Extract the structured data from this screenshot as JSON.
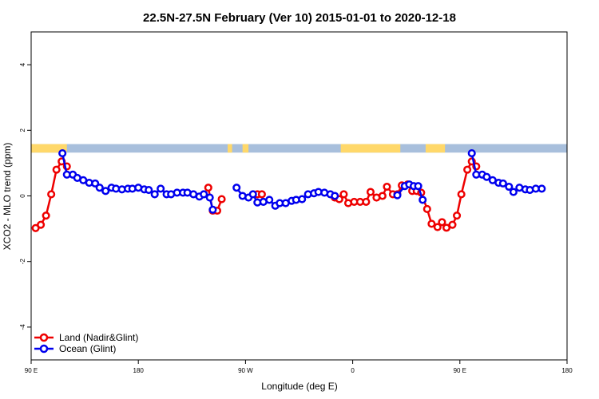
{
  "chart_data": {
    "type": "line",
    "title": "22.5N-27.5N February (Ver 10)   2015-01-01 to 2020-12-18",
    "xlabel": "Longitude (deg E)",
    "ylabel": "XCO2 - MLO trend (ppm)",
    "xlim": [
      90,
      450
    ],
    "ylim": [
      -5,
      5
    ],
    "x_ticks": [
      {
        "value": 90,
        "label": "90 E"
      },
      {
        "value": 162,
        "label": "180"
      },
      {
        "value": 234,
        "label": "90 W"
      },
      {
        "value": 306,
        "label": "0"
      },
      {
        "value": 378,
        "label": "90 E"
      },
      {
        "value": 450,
        "label": "180"
      }
    ],
    "y_ticks": [
      -4,
      -2,
      0,
      2,
      4
    ],
    "grid": false,
    "legend_position": "bottom-left",
    "land_band": {
      "y_range": [
        1.32,
        1.58
      ],
      "ocean_color": "#a8bfdc",
      "land_color": "#ffd86a",
      "land_x_ranges": [
        [
          90,
          114
        ],
        [
          222,
          225
        ],
        [
          232,
          236
        ],
        [
          298,
          338
        ],
        [
          355,
          368
        ]
      ]
    },
    "series": [
      {
        "name": "Land (Nadir&Glint)",
        "color": "#ee0000",
        "points": [
          [
            93,
            -0.98
          ],
          [
            96.5,
            -0.88
          ],
          [
            100,
            -0.6
          ],
          [
            103.5,
            0.05
          ],
          [
            107,
            0.8
          ],
          [
            110.5,
            1.05
          ],
          [
            114,
            0.9
          ],
          [
            209,
            0.25
          ],
          [
            212,
            -0.45
          ],
          [
            215,
            -0.45
          ],
          [
            218,
            -0.1
          ],
          [
            242,
            0.05
          ],
          [
            245,
            0.05
          ],
          [
            294,
            -0.05
          ],
          [
            297,
            -0.1
          ],
          [
            300,
            0.05
          ],
          [
            303,
            -0.22
          ],
          [
            307,
            -0.18
          ],
          [
            311,
            -0.18
          ],
          [
            315,
            -0.18
          ],
          [
            318,
            0.12
          ],
          [
            322,
            -0.05
          ],
          [
            326,
            0.0
          ],
          [
            329,
            0.28
          ],
          [
            333,
            0.05
          ],
          [
            336,
            0.05
          ],
          [
            339,
            0.32
          ],
          [
            343,
            0.35
          ],
          [
            346,
            0.15
          ],
          [
            349,
            0.15
          ],
          [
            352,
            0.1
          ],
          [
            356,
            -0.4
          ],
          [
            359,
            -0.85
          ],
          [
            363,
            -0.95
          ],
          [
            366,
            -0.8
          ],
          [
            369,
            -0.97
          ],
          [
            373,
            -0.88
          ],
          [
            376,
            -0.6
          ],
          [
            379,
            0.05
          ],
          [
            383,
            0.8
          ],
          [
            386,
            1.05
          ],
          [
            389,
            0.9
          ]
        ]
      },
      {
        "name": "Ocean (Glint)",
        "color": "#0000ee",
        "points": [
          [
            111,
            1.3
          ],
          [
            114,
            0.65
          ],
          [
            118,
            0.65
          ],
          [
            121,
            0.55
          ],
          [
            125,
            0.48
          ],
          [
            129,
            0.4
          ],
          [
            133,
            0.38
          ],
          [
            136,
            0.25
          ],
          [
            140,
            0.15
          ],
          [
            144,
            0.25
          ],
          [
            147,
            0.22
          ],
          [
            151,
            0.2
          ],
          [
            155,
            0.22
          ],
          [
            158,
            0.22
          ],
          [
            162,
            0.25
          ],
          [
            166,
            0.2
          ],
          [
            169,
            0.18
          ],
          [
            173,
            0.05
          ],
          [
            177,
            0.22
          ],
          [
            181,
            0.05
          ],
          [
            184,
            0.05
          ],
          [
            188,
            0.1
          ],
          [
            192,
            0.1
          ],
          [
            195,
            0.1
          ],
          [
            199,
            0.05
          ],
          [
            203,
            -0.02
          ],
          [
            206,
            0.05
          ],
          [
            210,
            -0.05
          ],
          [
            212,
            -0.42
          ],
          [
            228,
            0.25
          ],
          [
            232,
            0.0
          ],
          [
            236,
            -0.05
          ],
          [
            239,
            0.05
          ],
          [
            242,
            -0.2
          ],
          [
            246,
            -0.18
          ],
          [
            250,
            -0.12
          ],
          [
            254,
            -0.3
          ],
          [
            257,
            -0.22
          ],
          [
            261,
            -0.22
          ],
          [
            265,
            -0.15
          ],
          [
            268,
            -0.12
          ],
          [
            272,
            -0.1
          ],
          [
            276,
            0.05
          ],
          [
            280,
            0.08
          ],
          [
            283,
            0.12
          ],
          [
            287,
            0.1
          ],
          [
            291,
            0.05
          ],
          [
            294,
            0.0
          ],
          [
            336,
            0.02
          ],
          [
            341,
            0.3
          ],
          [
            344,
            0.35
          ],
          [
            347,
            0.3
          ],
          [
            350,
            0.3
          ],
          [
            353,
            -0.12
          ],
          [
            386,
            1.3
          ],
          [
            389,
            0.65
          ],
          [
            393,
            0.65
          ],
          [
            396,
            0.58
          ],
          [
            400,
            0.48
          ],
          [
            404,
            0.4
          ],
          [
            407,
            0.38
          ],
          [
            411,
            0.28
          ],
          [
            414,
            0.12
          ],
          [
            418,
            0.25
          ],
          [
            422,
            0.2
          ],
          [
            425,
            0.18
          ],
          [
            429,
            0.22
          ],
          [
            433,
            0.22
          ]
        ]
      }
    ]
  }
}
